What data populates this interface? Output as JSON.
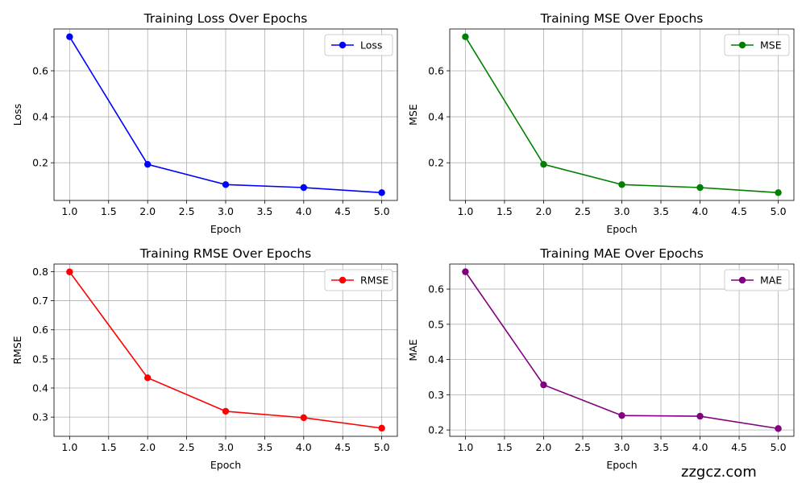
{
  "watermark": "zzgcz.com",
  "chart_data": [
    {
      "type": "line",
      "title": "Training Loss Over Epochs",
      "xlabel": "Epoch",
      "ylabel": "Loss",
      "x": [
        1,
        2,
        3,
        4,
        5
      ],
      "series": [
        {
          "name": "Loss",
          "color": "#0000ff",
          "values": [
            0.748,
            0.193,
            0.105,
            0.092,
            0.07
          ]
        }
      ],
      "xlim": [
        0.8,
        5.2
      ],
      "ylim": [
        0.036,
        0.782
      ],
      "xticks": [
        "1.0",
        "1.5",
        "2.0",
        "2.5",
        "3.0",
        "3.5",
        "4.0",
        "4.5",
        "5.0"
      ],
      "yticks": [
        "0.2",
        "0.4",
        "0.6"
      ],
      "grid": true,
      "legend": "top-right"
    },
    {
      "type": "line",
      "title": "Training MSE Over Epochs",
      "xlabel": "Epoch",
      "ylabel": "MSE",
      "x": [
        1,
        2,
        3,
        4,
        5
      ],
      "series": [
        {
          "name": "MSE",
          "color": "#008000",
          "values": [
            0.748,
            0.193,
            0.105,
            0.092,
            0.07
          ]
        }
      ],
      "xlim": [
        0.8,
        5.2
      ],
      "ylim": [
        0.036,
        0.782
      ],
      "xticks": [
        "1.0",
        "1.5",
        "2.0",
        "2.5",
        "3.0",
        "3.5",
        "4.0",
        "4.5",
        "5.0"
      ],
      "yticks": [
        "0.2",
        "0.4",
        "0.6"
      ],
      "grid": true,
      "legend": "top-right"
    },
    {
      "type": "line",
      "title": "Training RMSE Over Epochs",
      "xlabel": "Epoch",
      "ylabel": "RMSE",
      "x": [
        1,
        2,
        3,
        4,
        5
      ],
      "series": [
        {
          "name": "RMSE",
          "color": "#ff0000",
          "values": [
            0.799,
            0.435,
            0.32,
            0.298,
            0.262
          ]
        }
      ],
      "xlim": [
        0.8,
        5.2
      ],
      "ylim": [
        0.234,
        0.826
      ],
      "xticks": [
        "1.0",
        "1.5",
        "2.0",
        "2.5",
        "3.0",
        "3.5",
        "4.0",
        "4.5",
        "5.0"
      ],
      "yticks": [
        "0.3",
        "0.4",
        "0.5",
        "0.6",
        "0.7",
        "0.8"
      ],
      "grid": true,
      "legend": "top-right"
    },
    {
      "type": "line",
      "title": "Training MAE Over Epochs",
      "xlabel": "Epoch",
      "ylabel": "MAE",
      "x": [
        1,
        2,
        3,
        4,
        5
      ],
      "series": [
        {
          "name": "MAE",
          "color": "#800080",
          "values": [
            0.649,
            0.328,
            0.241,
            0.239,
            0.204
          ]
        }
      ],
      "xlim": [
        0.8,
        5.2
      ],
      "ylim": [
        0.182,
        0.671
      ],
      "xticks": [
        "1.0",
        "1.5",
        "2.0",
        "2.5",
        "3.0",
        "3.5",
        "4.0",
        "4.5",
        "5.0"
      ],
      "yticks": [
        "0.2",
        "0.3",
        "0.4",
        "0.5",
        "0.6"
      ],
      "grid": true,
      "legend": "top-right"
    }
  ]
}
